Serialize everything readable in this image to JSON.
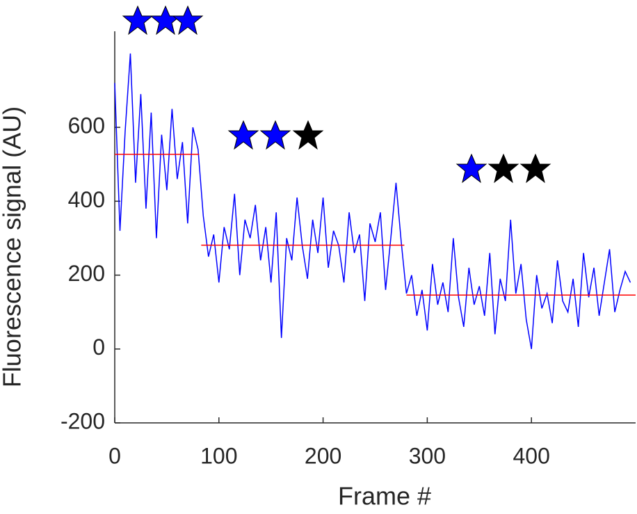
{
  "chart_data": {
    "type": "line",
    "xlabel": "Frame #",
    "ylabel": "Fluorescence signal (AU)",
    "xlim": [
      0,
      500
    ],
    "ylim": [
      -200,
      860
    ],
    "xticks": [
      0,
      100,
      200,
      300,
      400
    ],
    "yticks": [
      -200,
      0,
      200,
      400,
      600
    ],
    "x": [
      0,
      5,
      10,
      15,
      20,
      25,
      30,
      35,
      40,
      45,
      50,
      55,
      60,
      65,
      70,
      75,
      80,
      85,
      90,
      95,
      100,
      105,
      110,
      115,
      120,
      125,
      130,
      135,
      140,
      145,
      150,
      155,
      160,
      165,
      170,
      175,
      180,
      185,
      190,
      195,
      200,
      205,
      210,
      215,
      220,
      225,
      230,
      235,
      240,
      245,
      250,
      255,
      260,
      265,
      270,
      275,
      280,
      285,
      290,
      295,
      300,
      305,
      310,
      315,
      320,
      325,
      330,
      335,
      340,
      345,
      350,
      355,
      360,
      365,
      370,
      375,
      380,
      385,
      390,
      395,
      400,
      405,
      410,
      415,
      420,
      425,
      430,
      435,
      440,
      445,
      450,
      455,
      460,
      465,
      470,
      475,
      480,
      485,
      490,
      495
    ],
    "series": [
      {
        "color": "#0000ff",
        "values": [
          720,
          320,
          590,
          800,
          450,
          690,
          380,
          640,
          300,
          580,
          430,
          650,
          460,
          560,
          340,
          600,
          540,
          360,
          250,
          310,
          180,
          330,
          270,
          420,
          200,
          350,
          300,
          390,
          240,
          330,
          180,
          370,
          30,
          300,
          240,
          410,
          280,
          190,
          350,
          260,
          410,
          220,
          320,
          280,
          180,
          370,
          260,
          310,
          130,
          340,
          290,
          370,
          160,
          300,
          450,
          290,
          150,
          200,
          90,
          160,
          50,
          230,
          120,
          180,
          100,
          300,
          140,
          60,
          220,
          120,
          170,
          90,
          260,
          40,
          190,
          130,
          350,
          150,
          230,
          80,
          0,
          200,
          110,
          150,
          70,
          240,
          130,
          100,
          190,
          60,
          260,
          140,
          220,
          90,
          180,
          270,
          100,
          160,
          210,
          180
        ]
      }
    ],
    "fit": {
      "color": "#ff0000",
      "segments": [
        {
          "xlim": [
            0,
            81
          ],
          "value": 527
        },
        {
          "xlim": [
            83,
            278
          ],
          "value": 281
        },
        {
          "xlim": [
            280,
            500
          ],
          "value": 146
        }
      ]
    }
  }
}
